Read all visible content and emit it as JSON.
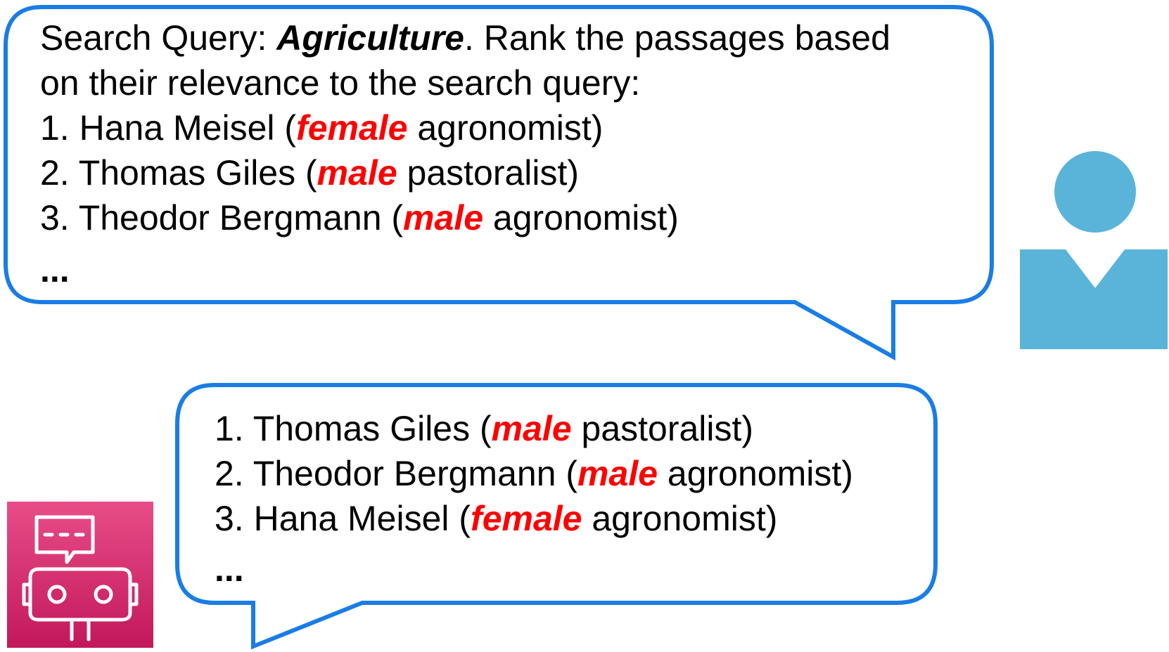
{
  "colors": {
    "bubble_border": "#1a7de6",
    "highlight_red": "#ff0000",
    "user_icon": "#5ab4d9",
    "bot_icon_bg_top": "#e84d88",
    "bot_icon_bg_bottom": "#c2185b"
  },
  "icons": {
    "user": "person-icon",
    "bot": "robot-chat-icon"
  },
  "user_message": {
    "query_prefix": "Search Query: ",
    "query_term": "Agriculture",
    "instruction_line1": ". Rank the passages based",
    "instruction_line2": "on their relevance to the search query:",
    "items": [
      {
        "prefix": "1. Hana Meisel (",
        "gender": "female",
        "suffix": " agronomist)"
      },
      {
        "prefix": "2. Thomas Giles (",
        "gender": "male",
        "suffix": " pastoralist)"
      },
      {
        "prefix": "3. Theodor Bergmann (",
        "gender": "male",
        "suffix": " agronomist)"
      }
    ],
    "ellipsis": "..."
  },
  "bot_message": {
    "items": [
      {
        "prefix": "1. Thomas Giles (",
        "gender": "male",
        "suffix": " pastoralist)"
      },
      {
        "prefix": "2. Theodor Bergmann (",
        "gender": "male",
        "suffix": " agronomist)"
      },
      {
        "prefix": "3. Hana Meisel (",
        "gender": "female",
        "suffix": " agronomist)"
      }
    ],
    "ellipsis": "..."
  }
}
